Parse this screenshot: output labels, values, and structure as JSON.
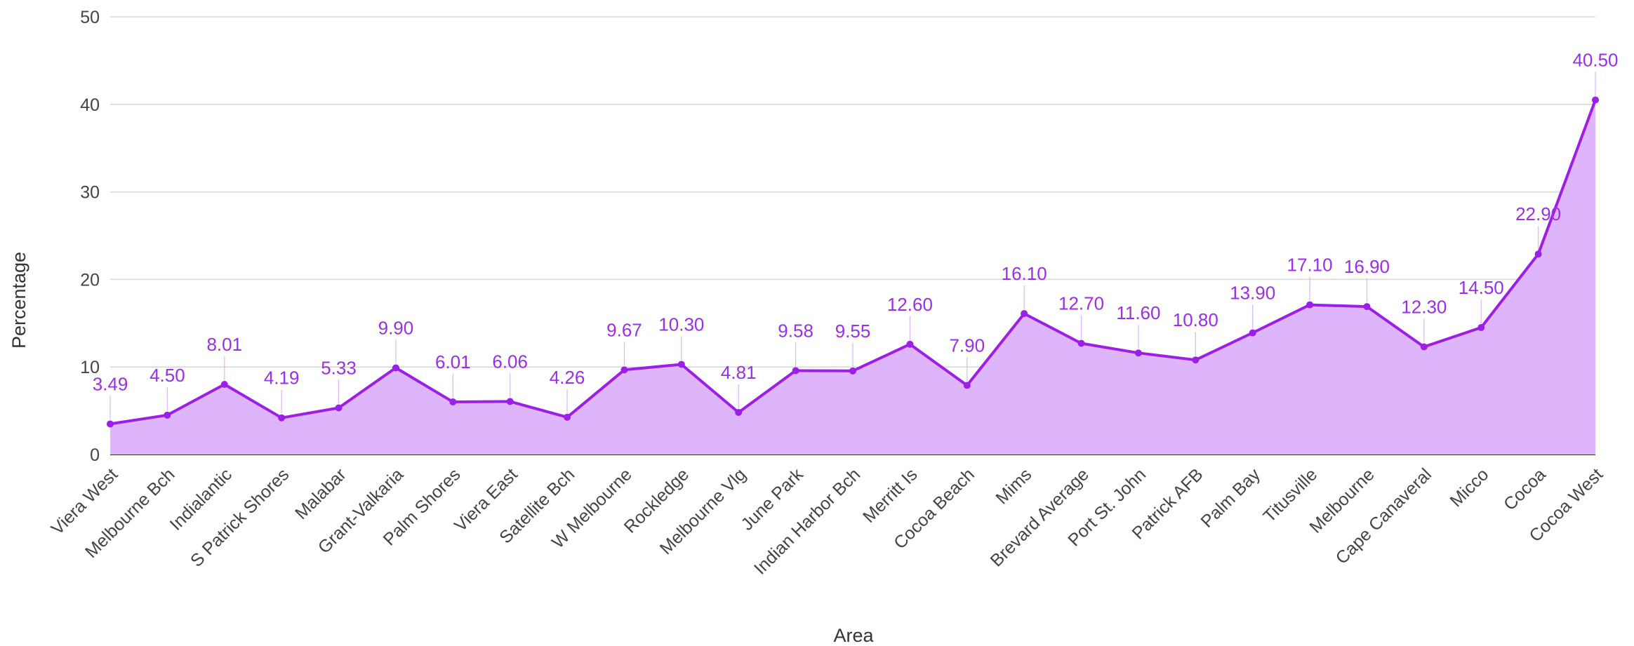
{
  "chart_data": {
    "type": "area",
    "xlabel": "Area",
    "ylabel": "Percentage",
    "ylim": [
      0,
      50
    ],
    "yticks": [
      0,
      10,
      20,
      30,
      40,
      50
    ],
    "grid": true,
    "categories": [
      "Viera West",
      "Melbourne Bch",
      "Indialantic",
      "S Patrick Shores",
      "Malabar",
      "Grant-Valkaria",
      "Palm Shores",
      "Viera East",
      "Satellite Bch",
      "W Melbourne",
      "Rockledge",
      "Melbourne Vlg",
      "June Park",
      "Indian Harbor Bch",
      "Merritt Is",
      "Cocoa Beach",
      "Mims",
      "Brevard Average",
      "Port St. John",
      "Patrick AFB",
      "Palm Bay",
      "Titusville",
      "Melbourne",
      "Cape Canaveral",
      "Micco",
      "Cocoa",
      "Cocoa West"
    ],
    "values": [
      3.49,
      4.5,
      8.01,
      4.19,
      5.33,
      9.9,
      6.01,
      6.06,
      4.26,
      9.67,
      10.3,
      4.81,
      9.58,
      9.55,
      12.6,
      7.9,
      16.1,
      12.7,
      11.6,
      10.8,
      13.9,
      17.1,
      16.9,
      12.3,
      14.5,
      22.9,
      40.5
    ],
    "value_labels": [
      "3.49",
      "4.50",
      "8.01",
      "4.19",
      "5.33",
      "9.90",
      "6.01",
      "6.06",
      "4.26",
      "9.67",
      "10.30",
      "4.81",
      "9.58",
      "9.55",
      "12.60",
      "7.90",
      "16.10",
      "12.70",
      "11.60",
      "10.80",
      "13.90",
      "17.10",
      "16.90",
      "12.30",
      "14.50",
      "22.90",
      "40.50"
    ],
    "line_color": "#9b1fe8",
    "fill_color": "#deb5fb",
    "label_color": "#9b2ee6"
  }
}
